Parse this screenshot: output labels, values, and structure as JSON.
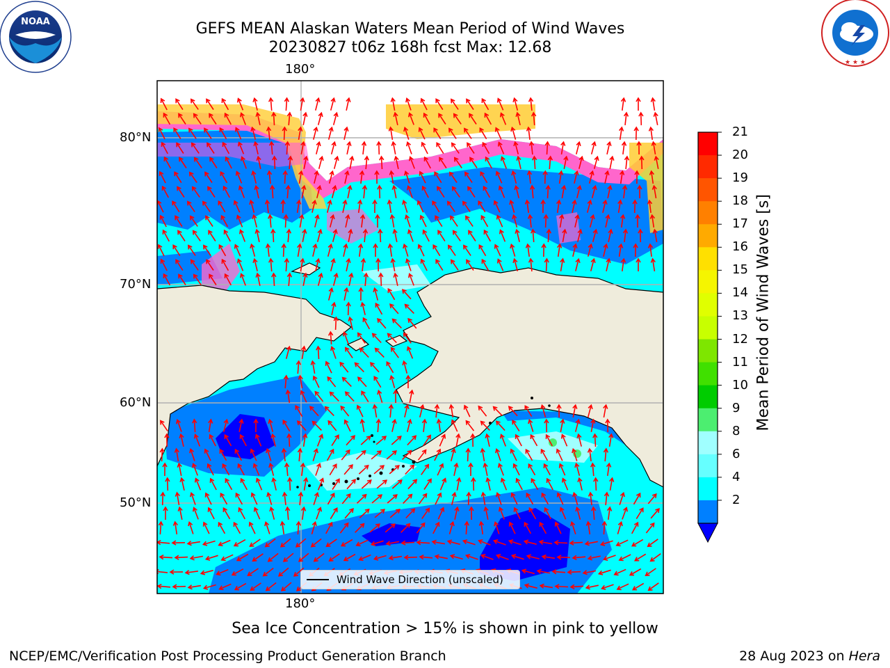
{
  "header": {
    "title_line1": "GEFS MEAN Alaskan Waters Mean Period of Wind Waves",
    "title_line2": "20230827 t06z 168h fcst   Max: 12.68"
  },
  "logos": {
    "left": {
      "name": "NOAA",
      "ring_text": "NATIONAL OCEANIC AND ATMOSPHERIC ADMINISTRATION · U.S. DEPARTMENT OF COMMERCE"
    },
    "right": {
      "ring_text": "NATIONAL WEATHER SERVICE"
    }
  },
  "map": {
    "lon_labels": {
      "top": "180°",
      "bottom": "180°"
    },
    "lat_labels": [
      "80°N",
      "70°N",
      "60°N",
      "50°N"
    ],
    "legend": "Wind Wave Direction (unscaled)",
    "colors": {
      "land": "#efecdc",
      "ice": "#ffffff",
      "arrow": "#ff0000",
      "grid": "#b0b0b0"
    }
  },
  "colorbar": {
    "label": "Mean Period of Wind Waves [s]",
    "ticks": [
      "21",
      "20",
      "19",
      "18",
      "17",
      "16",
      "15",
      "14",
      "13",
      "12",
      "11",
      "10",
      "9",
      "8",
      "6",
      "4",
      "2"
    ],
    "bands_top_to_bottom": [
      "#ff0000",
      "#ff2a00",
      "#ff5500",
      "#ff8000",
      "#ffaa00",
      "#ffe000",
      "#f5f500",
      "#e0ff00",
      "#c8ff00",
      "#7ee600",
      "#40e000",
      "#00cc00",
      "#4cee70",
      "#a0ffff",
      "#66ffff",
      "#00ffff",
      "#0080ff"
    ],
    "extend_color": "#0000ff"
  },
  "footer": {
    "subtitle": "Sea Ice Concentration > 15% is shown in pink to yellow",
    "left": "NCEP/EMC/Verification Post Processing Product Generation Branch",
    "right_date": "28 Aug 2023 on ",
    "right_host": "Hera"
  }
}
